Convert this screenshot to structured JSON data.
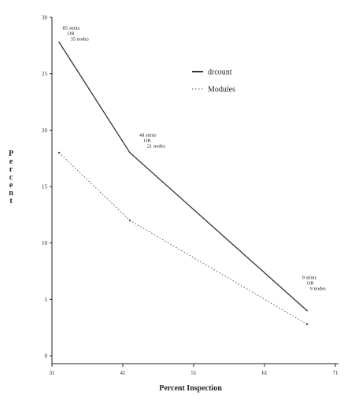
{
  "chart_data": {
    "type": "line",
    "title": "",
    "xlabel": "Percent Inspection",
    "ylabel": "Percent",
    "xlim": [
      31,
      71
    ],
    "ylim": [
      0,
      30
    ],
    "xticks": [
      31,
      41,
      51,
      61,
      71
    ],
    "yticks": [
      0,
      5,
      10,
      15,
      20,
      25,
      30
    ],
    "legend_position": "top-right",
    "series": [
      {
        "name": "drcount",
        "style": "solid",
        "color": "#333333",
        "x": [
          32,
          42,
          67
        ],
        "y": [
          27.8,
          18.0,
          4.0
        ]
      },
      {
        "name": "Modules",
        "style": "dotted",
        "color": "#555555",
        "x": [
          32,
          42,
          67
        ],
        "y": [
          18.0,
          12.0,
          2.8
        ]
      }
    ],
    "annotations": [
      {
        "x": 32.5,
        "y": 27.8,
        "lines": [
          "85 stmts",
          "OR",
          "35 nodes"
        ]
      },
      {
        "x": 43.3,
        "y": 18.3,
        "lines": [
          "48 stmts",
          "OR",
          "21 nodes"
        ]
      },
      {
        "x": 66.3,
        "y": 5.7,
        "lines": [
          "9 stmts",
          "OR",
          "9 nodes"
        ]
      }
    ]
  }
}
